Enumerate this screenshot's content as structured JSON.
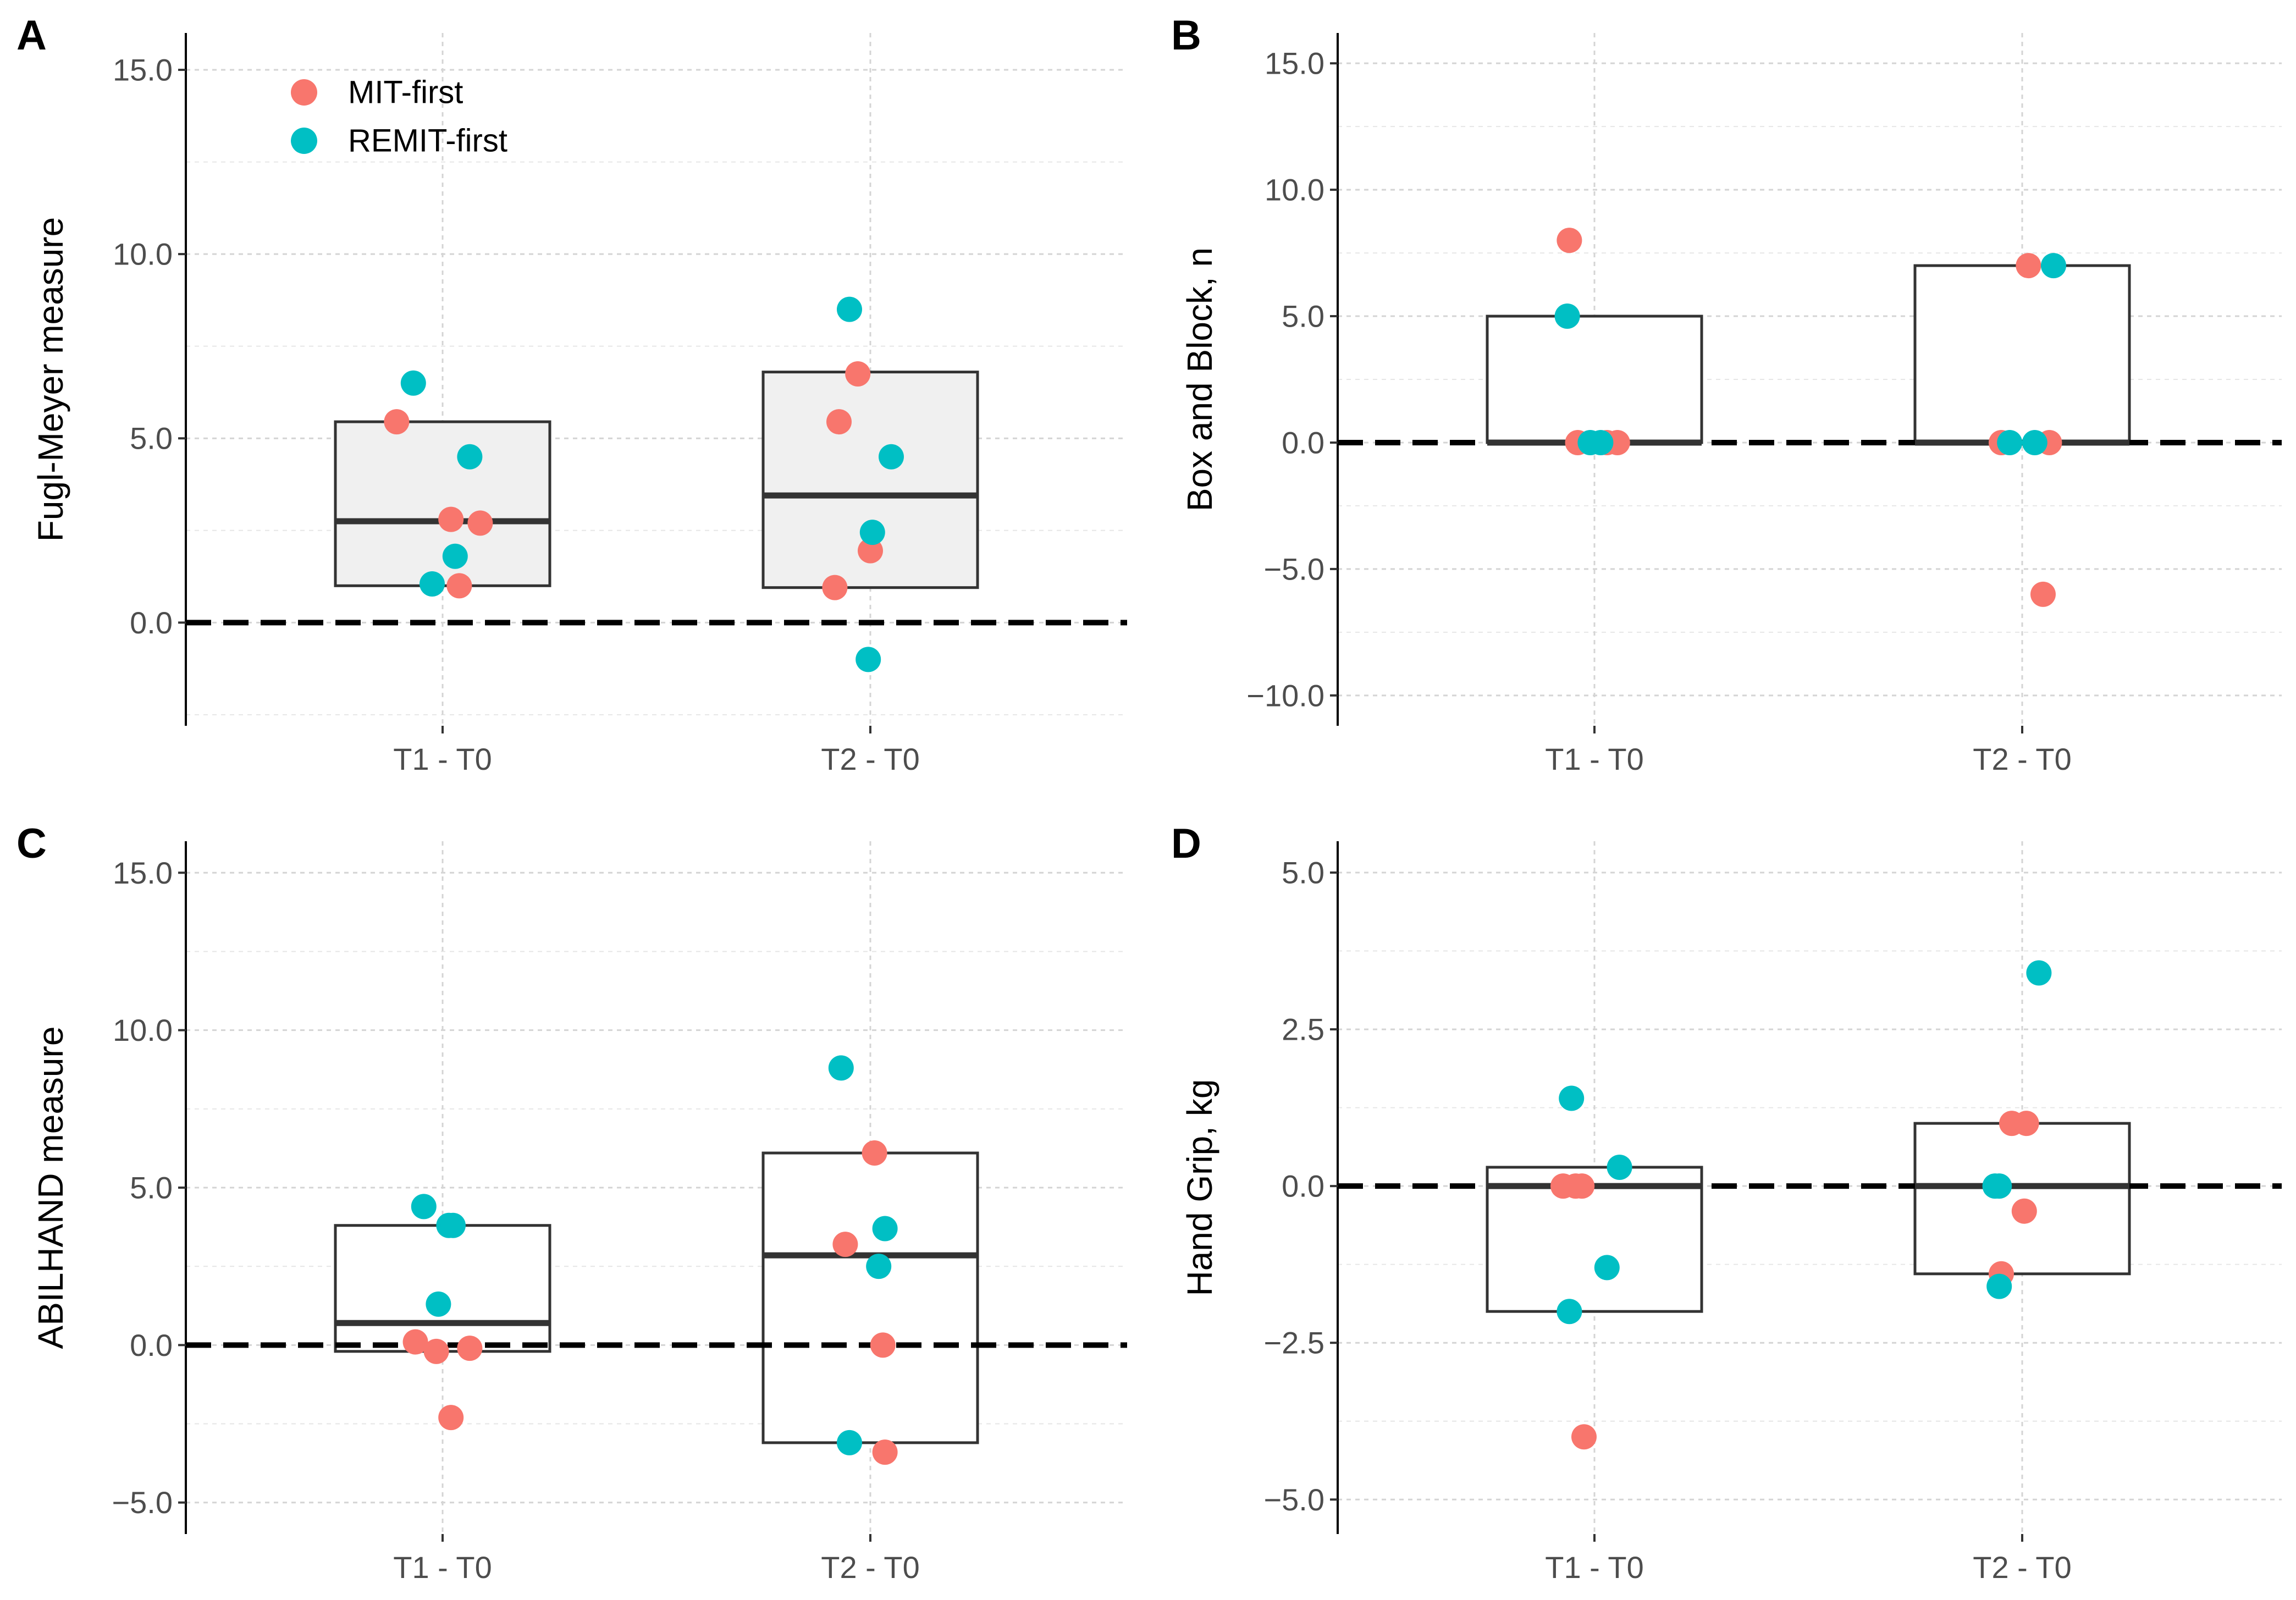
{
  "legend": {
    "items": [
      {
        "label": "MIT-first",
        "color": "#F8766D"
      },
      {
        "label": "REMIT-first",
        "color": "#00BFC4"
      }
    ]
  },
  "chart_data": [
    {
      "panel": "A",
      "type": "box-dot",
      "ylabel": "Fugl-Meyer measure",
      "ylim": [
        -2.8,
        16.0
      ],
      "yticks": [
        0,
        5,
        10,
        15
      ],
      "tick_labels": [
        "0.0",
        "5.0",
        "10.0",
        "15.0"
      ],
      "categories": [
        "T1 - T0",
        "T2 - T0"
      ],
      "box_fill": "#f0f0f0",
      "boxes": [
        {
          "category": "T1 - T0",
          "q1": 1.0,
          "median": 2.75,
          "q3": 5.45
        },
        {
          "category": "T2 - T0",
          "q1": 0.95,
          "median": 3.45,
          "q3": 6.8
        }
      ],
      "points": [
        {
          "category": "T1 - T0",
          "jitter": -0.22,
          "value": 5.45,
          "group": "MIT-first"
        },
        {
          "category": "T1 - T0",
          "jitter": 0.04,
          "value": 2.8,
          "group": "MIT-first"
        },
        {
          "category": "T1 - T0",
          "jitter": 0.18,
          "value": 2.7,
          "group": "MIT-first"
        },
        {
          "category": "T1 - T0",
          "jitter": 0.08,
          "value": 1.0,
          "group": "MIT-first"
        },
        {
          "category": "T1 - T0",
          "jitter": -0.14,
          "value": 6.5,
          "group": "REMIT-first"
        },
        {
          "category": "T1 - T0",
          "jitter": 0.13,
          "value": 4.5,
          "group": "REMIT-first"
        },
        {
          "category": "T1 - T0",
          "jitter": 0.06,
          "value": 1.8,
          "group": "REMIT-first"
        },
        {
          "category": "T1 - T0",
          "jitter": -0.05,
          "value": 1.05,
          "group": "REMIT-first"
        },
        {
          "category": "T2 - T0",
          "jitter": -0.06,
          "value": 6.75,
          "group": "MIT-first"
        },
        {
          "category": "T2 - T0",
          "jitter": -0.15,
          "value": 5.45,
          "group": "MIT-first"
        },
        {
          "category": "T2 - T0",
          "jitter": 0.0,
          "value": 1.95,
          "group": "MIT-first"
        },
        {
          "category": "T2 - T0",
          "jitter": -0.17,
          "value": 0.95,
          "group": "MIT-first"
        },
        {
          "category": "T2 - T0",
          "jitter": -0.1,
          "value": 8.5,
          "group": "REMIT-first"
        },
        {
          "category": "T2 - T0",
          "jitter": 0.1,
          "value": 4.5,
          "group": "REMIT-first"
        },
        {
          "category": "T2 - T0",
          "jitter": 0.01,
          "value": 2.45,
          "group": "REMIT-first"
        },
        {
          "category": "T2 - T0",
          "jitter": -0.01,
          "value": -1.0,
          "group": "REMIT-first"
        }
      ]
    },
    {
      "panel": "B",
      "type": "box-dot",
      "ylabel": "Box and Block, n",
      "ylim": [
        -11.2,
        16.2
      ],
      "yticks": [
        -10,
        -5,
        0,
        5,
        10,
        15
      ],
      "tick_labels": [
        "−10.0",
        "−5.0",
        "0.0",
        "5.0",
        "10.0",
        "15.0"
      ],
      "categories": [
        "T1 - T0",
        "T2 - T0"
      ],
      "box_fill": "#ffffff",
      "boxes": [
        {
          "category": "T1 - T0",
          "q1": 0.0,
          "median": 0.0,
          "q3": 5.0
        },
        {
          "category": "T2 - T0",
          "q1": 0.0,
          "median": 0.0,
          "q3": 7.0
        }
      ],
      "points": [
        {
          "category": "T1 - T0",
          "jitter": -0.12,
          "value": 8.0,
          "group": "MIT-first"
        },
        {
          "category": "T1 - T0",
          "jitter": -0.08,
          "value": 0.0,
          "group": "MIT-first"
        },
        {
          "category": "T1 - T0",
          "jitter": 0.06,
          "value": 0.0,
          "group": "MIT-first"
        },
        {
          "category": "T1 - T0",
          "jitter": 0.11,
          "value": 0.0,
          "group": "MIT-first"
        },
        {
          "category": "T1 - T0",
          "jitter": -0.13,
          "value": 5.0,
          "group": "REMIT-first"
        },
        {
          "category": "T1 - T0",
          "jitter": -0.02,
          "value": 0.0,
          "group": "REMIT-first"
        },
        {
          "category": "T1 - T0",
          "jitter": 0.03,
          "value": 0.0,
          "group": "REMIT-first"
        },
        {
          "category": "T2 - T0",
          "jitter": 0.03,
          "value": 7.0,
          "group": "MIT-first"
        },
        {
          "category": "T2 - T0",
          "jitter": -0.1,
          "value": 0.0,
          "group": "MIT-first"
        },
        {
          "category": "T2 - T0",
          "jitter": 0.13,
          "value": 0.0,
          "group": "MIT-first"
        },
        {
          "category": "T2 - T0",
          "jitter": 0.1,
          "value": -6.0,
          "group": "MIT-first"
        },
        {
          "category": "T2 - T0",
          "jitter": 0.15,
          "value": 7.0,
          "group": "REMIT-first"
        },
        {
          "category": "T2 - T0",
          "jitter": -0.06,
          "value": 0.0,
          "group": "REMIT-first"
        },
        {
          "category": "T2 - T0",
          "jitter": 0.06,
          "value": 0.0,
          "group": "REMIT-first"
        }
      ]
    },
    {
      "panel": "C",
      "type": "box-dot",
      "ylabel": "ABILHAND measure",
      "ylim": [
        -6.0,
        16.0
      ],
      "yticks": [
        -5,
        0,
        5,
        10,
        15
      ],
      "tick_labels": [
        "−5.0",
        "0.0",
        "5.0",
        "10.0",
        "15.0"
      ],
      "categories": [
        "T1 - T0",
        "T2 - T0"
      ],
      "box_fill": "#ffffff",
      "boxes": [
        {
          "category": "T1 - T0",
          "q1": -0.2,
          "median": 0.7,
          "q3": 3.8
        },
        {
          "category": "T2 - T0",
          "q1": -3.1,
          "median": 2.85,
          "q3": 6.1
        }
      ],
      "points": [
        {
          "category": "T1 - T0",
          "jitter": -0.13,
          "value": 0.1,
          "group": "MIT-first"
        },
        {
          "category": "T1 - T0",
          "jitter": -0.03,
          "value": -0.2,
          "group": "MIT-first"
        },
        {
          "category": "T1 - T0",
          "jitter": 0.13,
          "value": -0.1,
          "group": "MIT-first"
        },
        {
          "category": "T1 - T0",
          "jitter": 0.04,
          "value": -2.3,
          "group": "MIT-first"
        },
        {
          "category": "T1 - T0",
          "jitter": -0.09,
          "value": 4.4,
          "group": "REMIT-first"
        },
        {
          "category": "T1 - T0",
          "jitter": 0.03,
          "value": 3.8,
          "group": "REMIT-first"
        },
        {
          "category": "T1 - T0",
          "jitter": 0.05,
          "value": 3.8,
          "group": "REMIT-first"
        },
        {
          "category": "T1 - T0",
          "jitter": -0.02,
          "value": 1.3,
          "group": "REMIT-first"
        },
        {
          "category": "T2 - T0",
          "jitter": 0.02,
          "value": 6.1,
          "group": "MIT-first"
        },
        {
          "category": "T2 - T0",
          "jitter": -0.12,
          "value": 3.2,
          "group": "MIT-first"
        },
        {
          "category": "T2 - T0",
          "jitter": 0.06,
          "value": 0.0,
          "group": "MIT-first"
        },
        {
          "category": "T2 - T0",
          "jitter": 0.07,
          "value": -3.4,
          "group": "MIT-first"
        },
        {
          "category": "T2 - T0",
          "jitter": -0.14,
          "value": 8.8,
          "group": "REMIT-first"
        },
        {
          "category": "T2 - T0",
          "jitter": 0.07,
          "value": 3.7,
          "group": "REMIT-first"
        },
        {
          "category": "T2 - T0",
          "jitter": 0.04,
          "value": 2.5,
          "group": "REMIT-first"
        },
        {
          "category": "T2 - T0",
          "jitter": -0.1,
          "value": -3.1,
          "group": "REMIT-first"
        }
      ]
    },
    {
      "panel": "D",
      "type": "box-dot",
      "ylabel": "Hand Grip, kg",
      "ylim": [
        -5.55,
        5.5
      ],
      "yticks": [
        -5,
        -2.5,
        0,
        2.5,
        5
      ],
      "tick_labels": [
        "−5.0",
        "−2.5",
        "0.0",
        "2.5",
        "5.0"
      ],
      "categories": [
        "T1 - T0",
        "T2 - T0"
      ],
      "box_fill": "#ffffff",
      "boxes": [
        {
          "category": "T1 - T0",
          "q1": -2.0,
          "median": 0.0,
          "q3": 0.3
        },
        {
          "category": "T2 - T0",
          "q1": -1.4,
          "median": 0.0,
          "q3": 1.0
        }
      ],
      "points": [
        {
          "category": "T1 - T0",
          "jitter": -0.15,
          "value": 0.0,
          "group": "MIT-first"
        },
        {
          "category": "T1 - T0",
          "jitter": -0.09,
          "value": 0.0,
          "group": "MIT-first"
        },
        {
          "category": "T1 - T0",
          "jitter": -0.06,
          "value": 0.0,
          "group": "MIT-first"
        },
        {
          "category": "T1 - T0",
          "jitter": -0.05,
          "value": -4.0,
          "group": "MIT-first"
        },
        {
          "category": "T1 - T0",
          "jitter": -0.11,
          "value": 1.4,
          "group": "REMIT-first"
        },
        {
          "category": "T1 - T0",
          "jitter": 0.12,
          "value": 0.3,
          "group": "REMIT-first"
        },
        {
          "category": "T1 - T0",
          "jitter": 0.06,
          "value": -1.3,
          "group": "REMIT-first"
        },
        {
          "category": "T1 - T0",
          "jitter": -0.12,
          "value": -2.0,
          "group": "REMIT-first"
        },
        {
          "category": "T2 - T0",
          "jitter": -0.05,
          "value": 1.0,
          "group": "MIT-first"
        },
        {
          "category": "T2 - T0",
          "jitter": 0.02,
          "value": 1.0,
          "group": "MIT-first"
        },
        {
          "category": "T2 - T0",
          "jitter": 0.01,
          "value": -0.4,
          "group": "MIT-first"
        },
        {
          "category": "T2 - T0",
          "jitter": -0.1,
          "value": -1.4,
          "group": "MIT-first"
        },
        {
          "category": "T2 - T0",
          "jitter": 0.08,
          "value": 3.4,
          "group": "REMIT-first"
        },
        {
          "category": "T2 - T0",
          "jitter": -0.13,
          "value": 0.0,
          "group": "REMIT-first"
        },
        {
          "category": "T2 - T0",
          "jitter": -0.11,
          "value": 0.0,
          "group": "REMIT-first"
        },
        {
          "category": "T2 - T0",
          "jitter": -0.11,
          "value": -1.6,
          "group": "REMIT-first"
        }
      ]
    }
  ]
}
